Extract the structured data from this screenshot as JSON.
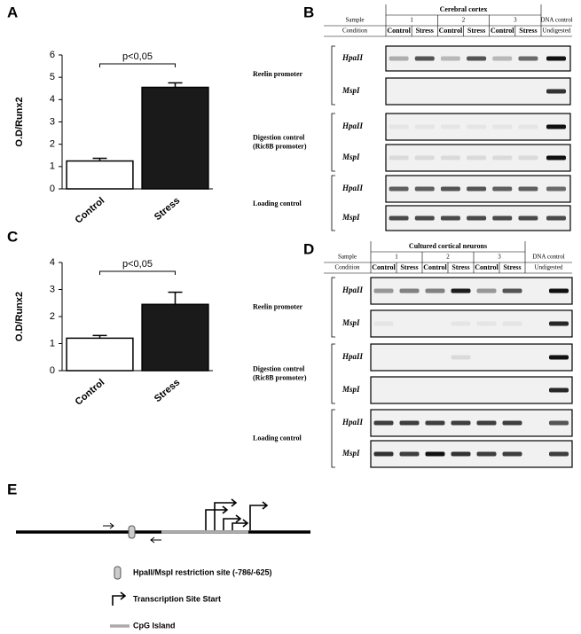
{
  "chart_data": [
    {
      "type": "bar",
      "panel": "A",
      "ylabel": "O.D/Runx2",
      "annotation": "p<0,05",
      "categories": [
        "Control",
        "Stress"
      ],
      "values": [
        1.25,
        4.55
      ],
      "errors": [
        0.12,
        0.2
      ],
      "colors": [
        "#ffffff",
        "#1a1a1a"
      ],
      "ylim": [
        0,
        6
      ],
      "yticks": [
        0,
        1,
        2,
        3,
        4,
        5,
        6
      ]
    },
    {
      "type": "bar",
      "panel": "C",
      "ylabel": "O.D/Runx2",
      "annotation": "p<0,05",
      "categories": [
        "Control",
        "Stress"
      ],
      "values": [
        1.2,
        2.45
      ],
      "errors": [
        0.1,
        0.45
      ],
      "colors": [
        "#ffffff",
        "#1a1a1a"
      ],
      "ylim": [
        0,
        4
      ],
      "yticks": [
        0,
        1,
        2,
        3,
        4
      ]
    }
  ],
  "gels": [
    {
      "panel": "B",
      "title": "Cerebral cortex"
    },
    {
      "panel": "D",
      "title": "Cultured cortical neurons"
    }
  ],
  "gel_table": {
    "sample_header": "Sample",
    "condition_header": "Condition",
    "samples": [
      "1",
      "2",
      "3"
    ],
    "conditions": [
      "Control",
      "Stress"
    ],
    "control_header": "DNA control",
    "control_condition": "Undigested",
    "enzymes": [
      "HpaII",
      "MspI"
    ],
    "groups": [
      [
        "Reelin promoter"
      ],
      [
        "Digestion control",
        "(Ric8B promoter)"
      ],
      [
        "Loading control"
      ]
    ]
  },
  "diagram": {
    "panel": "E",
    "legend": [
      "HpaII/MspI restriction site (-786/-625)",
      "Transcription Site Start",
      "CpG Island"
    ]
  }
}
